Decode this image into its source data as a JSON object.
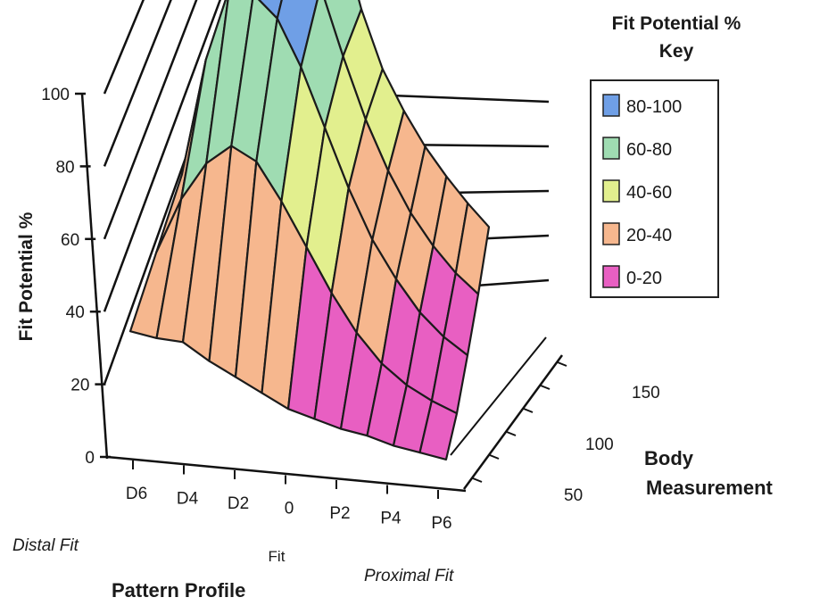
{
  "chart_data": {
    "type": "surface3d",
    "title": "",
    "ylabel": "Fit Potential %",
    "zlim": [
      0,
      100
    ],
    "z_ticks": [
      "0",
      "20",
      "40",
      "60",
      "80",
      "100"
    ],
    "x_axis": {
      "title": "Pattern Profile",
      "ticks": [
        "D6",
        "D4",
        "D2",
        "0",
        "P2",
        "P4",
        "P6"
      ],
      "annotations": {
        "left": "Distal Fit",
        "center": "Fit",
        "right": "Proximal Fit"
      }
    },
    "y_axis": {
      "title_line1": "Body",
      "title_line2": "Measurement",
      "ticks": [
        "50",
        "100",
        "150"
      ]
    },
    "legend": {
      "title_line1": "Fit Potential %",
      "title_line2": "Key",
      "position": "top-right",
      "bands": [
        {
          "label": "80-100",
          "color": "#6f9fe6"
        },
        {
          "label": "60-80",
          "color": "#9fdcb2"
        },
        {
          "label": "40-60",
          "color": "#e2ef8e"
        },
        {
          "label": "20-40",
          "color": "#f6b78e"
        },
        {
          "label": "0-20",
          "color": "#e85fc2"
        }
      ]
    },
    "pattern_profile_values": [
      -6,
      -5,
      -4,
      -3,
      -2,
      -1,
      0,
      1,
      2,
      3,
      4,
      5,
      6
    ],
    "body_measurement_values": [
      50,
      75,
      100,
      125,
      150
    ],
    "z": [
      [
        18,
        18,
        19,
        15,
        12,
        9,
        6,
        5,
        4,
        4,
        3,
        3,
        3
      ],
      [
        19,
        40,
        55,
        64,
        62,
        52,
        40,
        28,
        18,
        11,
        7,
        5,
        4
      ],
      [
        20,
        62,
        90,
        92,
        88,
        76,
        60,
        44,
        31,
        22,
        15,
        11,
        9
      ],
      [
        20,
        60,
        97,
        99,
        95,
        82,
        64,
        48,
        36,
        27,
        21,
        17,
        15
      ],
      [
        20,
        50,
        85,
        95,
        92,
        80,
        60,
        46,
        38,
        32,
        28,
        25,
        23
      ]
    ]
  }
}
